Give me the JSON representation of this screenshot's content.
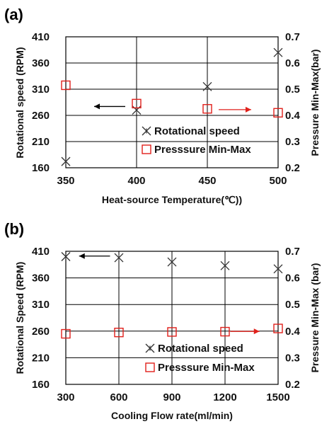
{
  "chart_data": [
    {
      "type": "scatter",
      "panel_label": "(a)",
      "xlabel": "Heat-source Temperature(℃))",
      "ylabel_left": "Rotational speed (RPM)",
      "ylabel_right": "Pressure Min-Max(bar)",
      "x_ticks": [
        350,
        400,
        450,
        500
      ],
      "xlim": [
        350,
        500
      ],
      "y_left_ticks": [
        160,
        210,
        260,
        310,
        360,
        410
      ],
      "y_left_lim": [
        160,
        410
      ],
      "y_right_ticks": [
        "0.2",
        "0.3",
        "0.4",
        "0.5",
        "0.6",
        "0.7"
      ],
      "y_right_lim": [
        0.2,
        0.7
      ],
      "grid": true,
      "legend_position": "lower-right",
      "series": [
        {
          "name": "Rotational speed",
          "axis": "left",
          "marker": "asterisk",
          "color": "#333333",
          "x": [
            350,
            400,
            450,
            500
          ],
          "y": [
            172,
            270,
            315,
            380
          ]
        },
        {
          "name": "Presssure Min-Max",
          "axis": "right",
          "marker": "square-open",
          "color": "#e0201b",
          "x": [
            350,
            400,
            450,
            500
          ],
          "y": [
            0.515,
            0.445,
            0.425,
            0.41
          ]
        }
      ],
      "annotations": [
        {
          "type": "arrow",
          "direction": "left",
          "color": "#000000",
          "from": [
            392,
            277
          ],
          "to": [
            370,
            277
          ],
          "axis": "left"
        },
        {
          "type": "arrow",
          "direction": "right",
          "color": "#e0201b",
          "from": [
            458,
            0.422
          ],
          "to": [
            481,
            0.422
          ],
          "axis": "right"
        }
      ]
    },
    {
      "type": "scatter",
      "panel_label": "(b)",
      "xlabel": "Cooling Flow rate(ml/min)",
      "ylabel_left": "Rotational Speed (RPM)",
      "ylabel_right": "Pressure Min-Max (bar)",
      "x_ticks": [
        300,
        600,
        900,
        1200,
        1500
      ],
      "xlim": [
        300,
        1500
      ],
      "y_left_ticks": [
        160,
        210,
        260,
        310,
        360,
        410
      ],
      "y_left_lim": [
        160,
        410
      ],
      "y_right_ticks": [
        "0.2",
        "0.3",
        "0.4",
        "0.5",
        "0.6",
        "0.7"
      ],
      "y_right_lim": [
        0.2,
        0.7
      ],
      "grid": true,
      "legend_position": "lower-right",
      "series": [
        {
          "name": "Rotational speed",
          "axis": "left",
          "marker": "asterisk",
          "color": "#333333",
          "x": [
            300,
            600,
            900,
            1200,
            1500
          ],
          "y": [
            400,
            398,
            390,
            383,
            377
          ]
        },
        {
          "name": "Presssure Min-Max",
          "axis": "right",
          "marker": "square-open",
          "color": "#e0201b",
          "x": [
            300,
            600,
            900,
            1200,
            1500
          ],
          "y": [
            0.39,
            0.395,
            0.397,
            0.398,
            0.41
          ]
        }
      ],
      "annotations": [
        {
          "type": "arrow",
          "direction": "left",
          "color": "#000000",
          "from": [
            550,
            401
          ],
          "to": [
            375,
            401
          ],
          "axis": "left"
        },
        {
          "type": "arrow",
          "direction": "right",
          "color": "#e0201b",
          "from": [
            1230,
            0.399
          ],
          "to": [
            1395,
            0.399
          ],
          "axis": "right"
        }
      ]
    }
  ]
}
